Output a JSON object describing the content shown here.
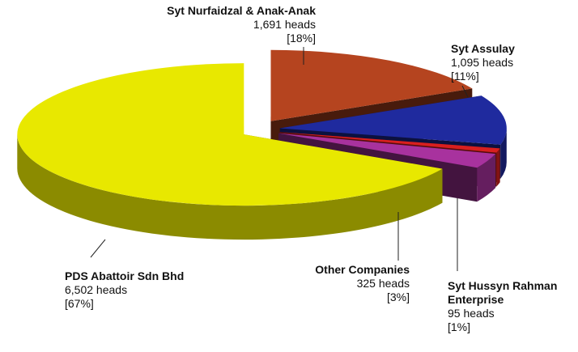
{
  "chart_data": {
    "type": "pie3d",
    "categories": [
      "Syt Nurfaidzal & Anak-Anak",
      "Syt Assulay",
      "Syt Hussyn Rahman Enterprise",
      "Other Companies",
      "PDS Abattoir Sdn Bhd"
    ],
    "values": [
      1691,
      1095,
      95,
      325,
      6502
    ],
    "value_labels": [
      "1,691 heads",
      "1,095 heads",
      "95 heads",
      "325 heads",
      "6,502 heads"
    ],
    "percent_labels": [
      "[18%]",
      "[11%]",
      "[1%]",
      "[3%]",
      "[67%]"
    ],
    "colors": [
      "#b5441f",
      "#1f2a9e",
      "#d81f1f",
      "#a8329e",
      "#e8e800"
    ]
  }
}
